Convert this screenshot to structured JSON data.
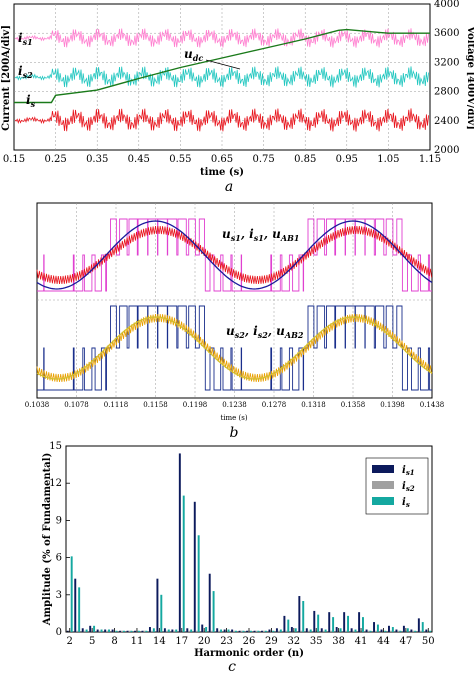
{
  "chart_data": [
    {
      "panel": "a",
      "type": "line",
      "caption": "a",
      "xlabel": "time (s)",
      "ylabel_left": "Current [200A/div]",
      "ylabel_right": "Voltage [400V/div]",
      "xlim": [
        0.15,
        1.15
      ],
      "x_ticks": [
        "0.15",
        "0.25",
        "0.35",
        "0.45",
        "0.55",
        "0.65",
        "0.75",
        "0.85",
        "0.95",
        "1.05",
        "1.15"
      ],
      "y_right_ticks": [
        "2000",
        "2400",
        "2800",
        "3200",
        "3600",
        "4000"
      ],
      "y_right_lim": [
        2000,
        4000
      ],
      "labels": {
        "is1": "i",
        "is1_sub": "s1",
        "is2": "i",
        "is2_sub": "s2",
        "is": "i",
        "is_sub": "s",
        "udc": "u",
        "udc_sub": "dc"
      },
      "series": [
        {
          "name": "udc",
          "x": [
            0.15,
            0.24,
            0.25,
            0.35,
            0.45,
            0.55,
            0.65,
            0.75,
            0.85,
            0.93,
            0.95,
            1.05,
            1.15
          ],
          "values": [
            2650,
            2650,
            2750,
            2820,
            2980,
            3130,
            3260,
            3390,
            3520,
            3640,
            3650,
            3600,
            3600
          ],
          "color": "#1a7a1a"
        }
      ],
      "colors": {
        "is1": "#ff7fd0",
        "is2": "#22c7c0",
        "is": "#e8141c",
        "udc": "#1a7a1a",
        "grid": "#999999"
      }
    },
    {
      "panel": "b",
      "type": "line",
      "caption": "b",
      "xlabel": "time (s)",
      "x_ticks": [
        "0.1038",
        "0.1078",
        "0.1118",
        "0.1158",
        "0.1198",
        "0.1238",
        "0.1278",
        "0.1318",
        "0.1358",
        "0.1398",
        "0.1438"
      ],
      "xlim": [
        0.1038,
        0.1438
      ],
      "labels": {
        "top": "u",
        "top_sub1": "s1",
        "top_mid": ", i",
        "top_sub2": "s1",
        "top_mid2": ", u",
        "top_sub3": "AB1",
        "bottom": "u",
        "bottom_sub1": "s2",
        "bottom_mid": ", i",
        "bottom_sub2": "s2",
        "bottom_mid2": ", u",
        "bottom_sub3": "AB2"
      },
      "colors": {
        "us1": "#e040d0",
        "is1": "#e8141c",
        "uab1": "#1a1a9c",
        "us2": "#1a2f8c",
        "is2": "#e8a000",
        "uab2": "#d4c030"
      }
    },
    {
      "panel": "c",
      "type": "bar",
      "caption": "c",
      "xlabel": "Harmonic order (n)",
      "ylabel": "Amplitude (% of Fundamental)",
      "ylim": [
        0,
        15
      ],
      "y_ticks": [
        "0",
        "3",
        "6",
        "9",
        "12",
        "15"
      ],
      "x_ticks": [
        "2",
        "5",
        "8",
        "11",
        "14",
        "17",
        "20",
        "23",
        "26",
        "29",
        "32",
        "35",
        "38",
        "41",
        "44",
        "47",
        "50"
      ],
      "legend_position": "top-right",
      "categories": [
        2,
        3,
        4,
        5,
        6,
        7,
        8,
        9,
        10,
        11,
        12,
        13,
        14,
        15,
        16,
        17,
        18,
        19,
        20,
        21,
        22,
        23,
        24,
        25,
        26,
        27,
        28,
        29,
        30,
        31,
        32,
        33,
        34,
        35,
        36,
        37,
        38,
        39,
        40,
        41,
        42,
        43,
        44,
        45,
        46,
        47,
        48,
        49,
        50
      ],
      "series": [
        {
          "name": "i",
          "sub": "s1",
          "color": "#0c1a5c",
          "values": [
            0.1,
            4.3,
            0.3,
            0.5,
            0.2,
            0.2,
            0.2,
            0.1,
            0.1,
            0.1,
            0.1,
            0.4,
            4.3,
            0.3,
            0.2,
            14.4,
            0.3,
            10.5,
            0.6,
            4.7,
            0.3,
            0.2,
            0.2,
            0.1,
            0.1,
            0.1,
            0.1,
            0.2,
            0.3,
            1.3,
            0.4,
            2.9,
            0.3,
            1.7,
            0.3,
            1.6,
            0.4,
            1.6,
            0.3,
            1.6,
            0.2,
            0.8,
            0.2,
            0.5,
            0.2,
            0.5,
            0.2,
            1.1,
            0.2
          ]
        },
        {
          "name": "i",
          "sub": "s2",
          "color": "#a0a0a0",
          "values": [
            0.1,
            0.1,
            0.1,
            0.1,
            0.1,
            0.1,
            0.1,
            0.1,
            0.1,
            0.1,
            0.1,
            0.1,
            0.1,
            0.1,
            0.1,
            0.1,
            0.1,
            0.1,
            0.1,
            0.1,
            0.1,
            0.1,
            0.1,
            0.1,
            0.1,
            0.1,
            0.1,
            0.1,
            0.1,
            0.1,
            0.1,
            0.1,
            0.1,
            0.1,
            0.1,
            0.1,
            0.1,
            0.1,
            0.1,
            0.1,
            0.1,
            0.1,
            0.1,
            0.1,
            0.1,
            0.1,
            0.1,
            0.1,
            0.1
          ]
        },
        {
          "name": "i",
          "sub": "s",
          "color": "#14a8a0",
          "values": [
            6.1,
            3.6,
            0.2,
            0.5,
            0.2,
            0.2,
            0.1,
            0.1,
            0.1,
            0.1,
            0.1,
            0.3,
            3.0,
            0.2,
            0.2,
            11.0,
            0.2,
            7.8,
            0.4,
            3.3,
            0.2,
            0.2,
            0.1,
            0.1,
            0.1,
            0.1,
            0.1,
            0.1,
            0.2,
            1.0,
            0.3,
            2.5,
            0.2,
            1.4,
            0.2,
            1.2,
            0.3,
            1.3,
            0.2,
            1.2,
            0.1,
            0.6,
            0.1,
            0.4,
            0.1,
            0.3,
            0.1,
            0.8,
            0.1
          ]
        }
      ]
    }
  ]
}
